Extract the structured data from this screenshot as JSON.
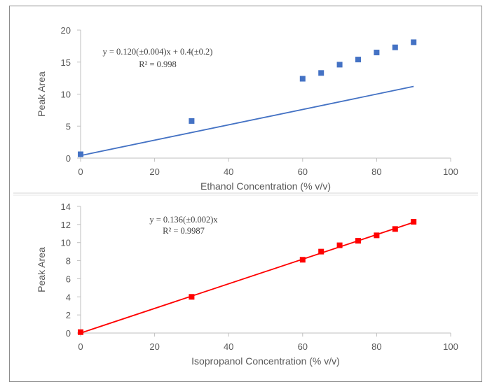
{
  "chart_data": [
    {
      "type": "scatter",
      "xlabel": "Ethanol Concentration (% v/v)",
      "ylabel": "Peak Area",
      "xlim": [
        0,
        100
      ],
      "ylim": [
        0,
        20
      ],
      "xticks": [
        "0",
        "20",
        "40",
        "60",
        "80",
        "100"
      ],
      "yticks": [
        "0",
        "5",
        "10",
        "15",
        "20"
      ],
      "grid": false,
      "series": [
        {
          "color": "#4472c4",
          "marker": "square",
          "points": [
            [
              0,
              0.6
            ],
            [
              30,
              5.8
            ],
            [
              60,
              12.4
            ],
            [
              65,
              13.3
            ],
            [
              70,
              14.6
            ],
            [
              75,
              15.4
            ],
            [
              80,
              16.5
            ],
            [
              85,
              17.3
            ],
            [
              90,
              18.1
            ]
          ]
        }
      ],
      "trendline": {
        "slope": 0.12,
        "intercept": 0.4,
        "color": "#4472c4"
      },
      "annotation": [
        "y = 0.120(±0.004)x + 0.4(±0.2)",
        "R² = 0.998"
      ]
    },
    {
      "type": "scatter",
      "xlabel": "Isopropanol Concentration (% v/v)",
      "ylabel": "Peak Area",
      "xlim": [
        0,
        100
      ],
      "ylim": [
        0,
        14
      ],
      "xticks": [
        "0",
        "20",
        "40",
        "60",
        "80",
        "100"
      ],
      "yticks": [
        "0",
        "2",
        "4",
        "6",
        "8",
        "10",
        "12",
        "14"
      ],
      "grid": false,
      "series": [
        {
          "color": "#ff0000",
          "marker": "square",
          "points": [
            [
              0,
              0.1
            ],
            [
              30,
              4.0
            ],
            [
              60,
              8.1
            ],
            [
              65,
              9.0
            ],
            [
              70,
              9.7
            ],
            [
              75,
              10.2
            ],
            [
              80,
              10.8
            ],
            [
              85,
              11.5
            ],
            [
              90,
              12.3
            ]
          ]
        }
      ],
      "trendline": {
        "slope": 0.136,
        "intercept": 0,
        "color": "#ff0000"
      },
      "annotation": [
        "y = 0.136(±0.002)x",
        "R² = 0.9987"
      ]
    }
  ]
}
